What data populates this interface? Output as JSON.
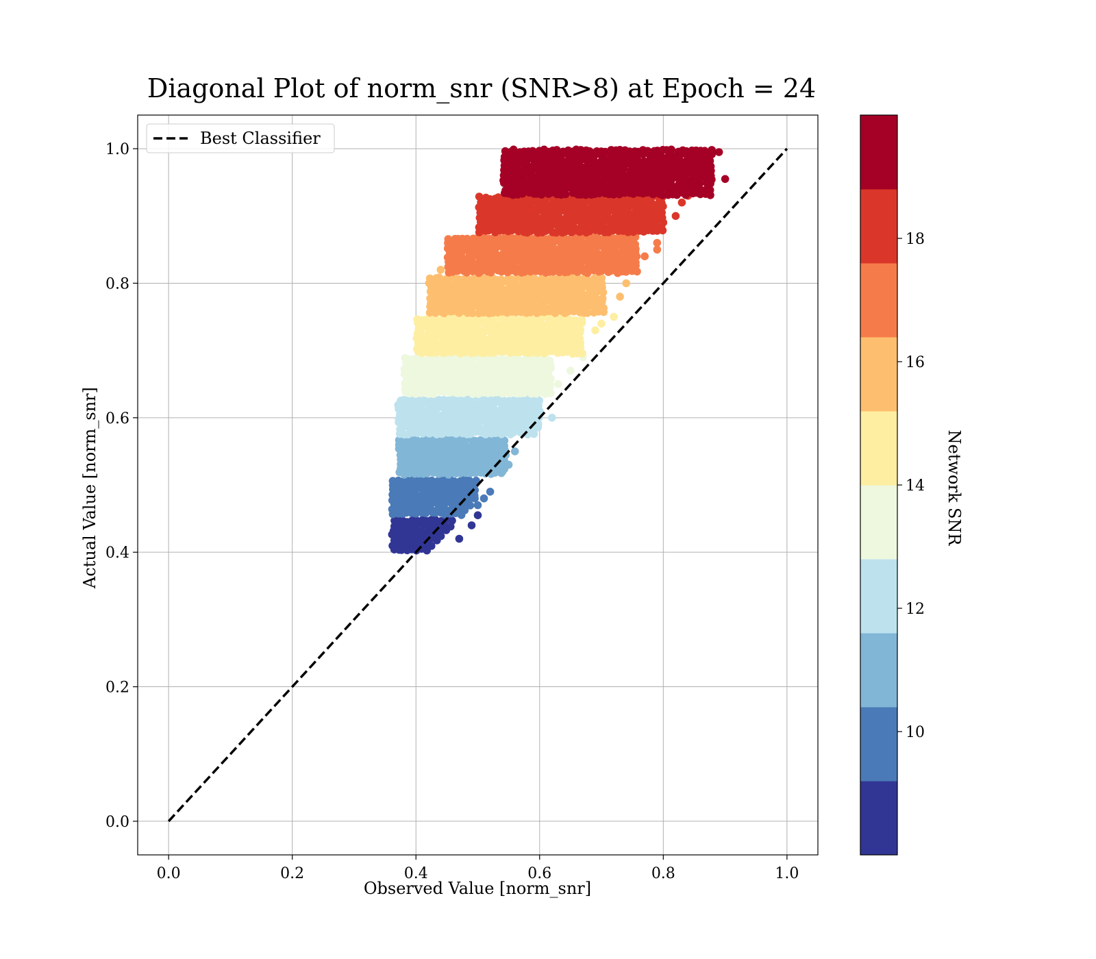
{
  "chart_data": {
    "type": "scatter",
    "title": "Diagonal Plot of norm_snr (SNR>8) at Epoch = 24",
    "xlabel": "Observed Value [norm_snr]",
    "ylabel": "Actual Value [norm_snr]",
    "xlim": [
      -0.05,
      1.05
    ],
    "ylim": [
      -0.05,
      1.05
    ],
    "x_ticks": [
      "0.0",
      "0.2",
      "0.4",
      "0.6",
      "0.8",
      "1.0"
    ],
    "y_ticks": [
      "0.0",
      "0.2",
      "0.4",
      "0.6",
      "0.8",
      "1.0"
    ],
    "grid": true,
    "legend": {
      "position": "top-left",
      "entries": [
        {
          "label": "Best Classifier",
          "style": "dashed",
          "color": "#000000"
        }
      ]
    },
    "reference_line": {
      "name": "Best Classifier",
      "x": [
        0.0,
        1.0
      ],
      "y": [
        0.0,
        1.0
      ],
      "style": "dashed"
    },
    "colorbar": {
      "label": "Network SNR",
      "range": [
        8,
        20
      ],
      "tick_labels": [
        "10",
        "12",
        "14",
        "16",
        "18"
      ],
      "tick_values": [
        10,
        12,
        14,
        16,
        18
      ],
      "bins": [
        {
          "min": 8,
          "max": 9.2,
          "color": "#313695"
        },
        {
          "min": 9.2,
          "max": 10.4,
          "color": "#4a7ab7"
        },
        {
          "min": 10.4,
          "max": 11.6,
          "color": "#82b6d6"
        },
        {
          "min": 11.6,
          "max": 12.8,
          "color": "#bde2ee"
        },
        {
          "min": 12.8,
          "max": 14.0,
          "color": "#edf8df"
        },
        {
          "min": 14.0,
          "max": 15.2,
          "color": "#feeea2"
        },
        {
          "min": 15.2,
          "max": 16.4,
          "color": "#fdbf6f"
        },
        {
          "min": 16.4,
          "max": 17.6,
          "color": "#f57c4a"
        },
        {
          "min": 17.6,
          "max": 18.8,
          "color": "#da372a"
        },
        {
          "min": 18.8,
          "max": 20.0,
          "color": "#a50026"
        }
      ]
    },
    "series_bands": [
      {
        "snr_bin": 0,
        "y_range": [
          0.4,
          0.45
        ],
        "x_range": [
          0.36,
          0.46
        ],
        "outliers": [
          [
            0.47,
            0.42
          ],
          [
            0.49,
            0.44
          ],
          [
            0.5,
            0.455
          ]
        ]
      },
      {
        "snr_bin": 1,
        "y_range": [
          0.45,
          0.51
        ],
        "x_range": [
          0.36,
          0.5
        ],
        "outliers": [
          [
            0.51,
            0.48
          ],
          [
            0.52,
            0.49
          ],
          [
            0.5,
            0.47
          ]
        ]
      },
      {
        "snr_bin": 2,
        "y_range": [
          0.51,
          0.57
        ],
        "x_range": [
          0.37,
          0.55
        ],
        "outliers": [
          [
            0.56,
            0.55
          ],
          [
            0.55,
            0.53
          ],
          [
            0.54,
            0.52
          ]
        ]
      },
      {
        "snr_bin": 3,
        "y_range": [
          0.57,
          0.63
        ],
        "x_range": [
          0.37,
          0.6
        ],
        "outliers": [
          [
            0.62,
            0.6
          ],
          [
            0.6,
            0.61
          ],
          [
            0.59,
            0.595
          ]
        ]
      },
      {
        "snr_bin": 4,
        "y_range": [
          0.63,
          0.69
        ],
        "x_range": [
          0.38,
          0.62
        ],
        "outliers": [
          [
            0.63,
            0.65
          ],
          [
            0.65,
            0.67
          ],
          [
            0.67,
            0.69
          ]
        ]
      },
      {
        "snr_bin": 5,
        "y_range": [
          0.69,
          0.75
        ],
        "x_range": [
          0.4,
          0.67
        ],
        "outliers": [
          [
            0.72,
            0.75
          ],
          [
            0.69,
            0.73
          ],
          [
            0.7,
            0.74
          ]
        ]
      },
      {
        "snr_bin": 6,
        "y_range": [
          0.75,
          0.81
        ],
        "x_range": [
          0.42,
          0.71
        ],
        "outliers": [
          [
            0.73,
            0.78
          ],
          [
            0.74,
            0.8
          ],
          [
            0.44,
            0.82
          ]
        ]
      },
      {
        "snr_bin": 7,
        "y_range": [
          0.81,
          0.87
        ],
        "x_range": [
          0.45,
          0.76
        ],
        "outliers": [
          [
            0.77,
            0.84
          ],
          [
            0.79,
            0.85
          ],
          [
            0.79,
            0.86
          ]
        ]
      },
      {
        "snr_bin": 8,
        "y_range": [
          0.87,
          0.93
        ],
        "x_range": [
          0.5,
          0.8
        ],
        "outliers": [
          [
            0.82,
            0.9
          ],
          [
            0.83,
            0.92
          ],
          [
            0.84,
            0.93
          ]
        ]
      },
      {
        "snr_bin": 9,
        "y_range": [
          0.93,
          1.0
        ],
        "x_range": [
          0.54,
          0.88
        ],
        "outliers": [
          [
            0.9,
            0.955
          ],
          [
            0.89,
            0.995
          ],
          [
            0.87,
            0.98
          ]
        ]
      }
    ]
  }
}
